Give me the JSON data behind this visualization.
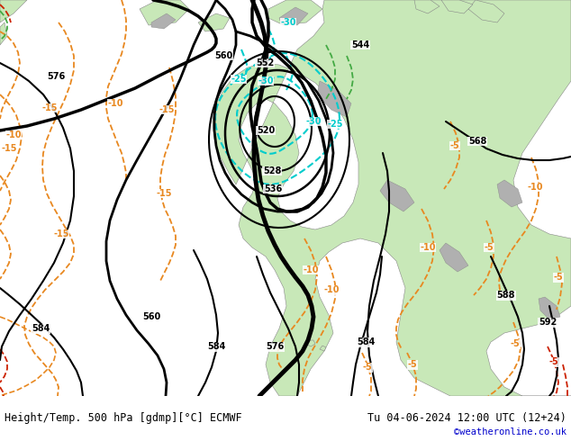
{
  "title_left": "Height/Temp. 500 hPa [gdmp][°C] ECMWF",
  "title_right": "Tu 04-06-2024 12:00 UTC (12+24)",
  "credit": "©weatheronline.co.uk",
  "sea_color": "#d2d2d2",
  "land_color": "#c8e8b8",
  "mountain_color": "#b0b0b0",
  "bottom_bar_color": "#ffffff",
  "label_color": "#000000",
  "credit_color": "#0000cc",
  "orange_color": "#e88820",
  "red_color": "#cc2200",
  "cyan_color": "#00cccc",
  "green_color": "#44aa44",
  "black_color": "#000000"
}
